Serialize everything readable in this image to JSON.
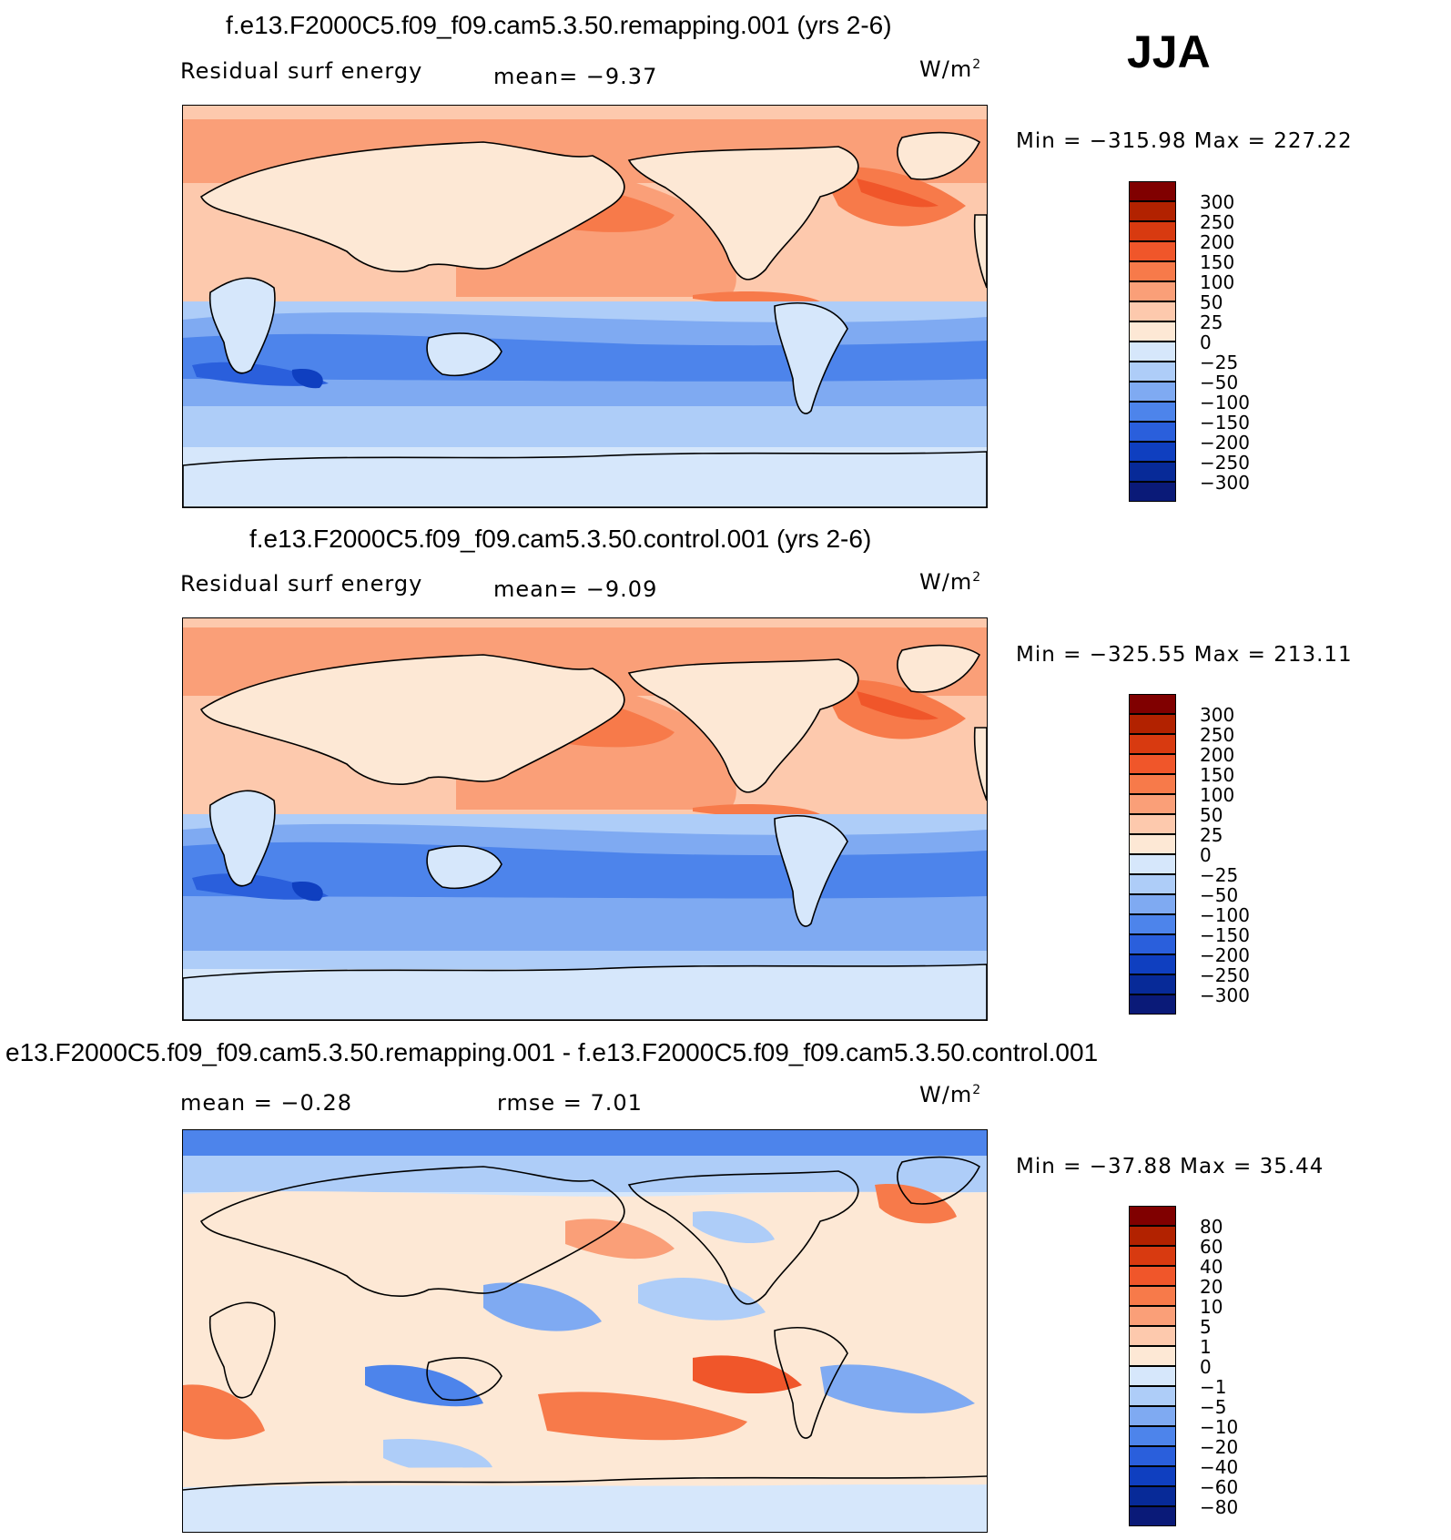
{
  "season": "JJA",
  "panels": [
    {
      "id": "remap",
      "title": "f.e13.F2000C5.f09_f09.cam5.3.50.remapping.001 (yrs 2-6)",
      "left_label": "Residual surf energy",
      "mid_label": "mean=   −9.37",
      "unit": "W/m",
      "unit_sup": "2",
      "minmax": "Min = −315.98 Max = 227.22",
      "colorbar": {
        "labels": [
          "300",
          "250",
          "200",
          "150",
          "100",
          "50",
          "25",
          "0",
          "−25",
          "−50",
          "−100",
          "−150",
          "−200",
          "−250",
          "−300"
        ],
        "colors": [
          "#800000",
          "#b22200",
          "#d83a10",
          "#f0562a",
          "#f77a4a",
          "#fa9f78",
          "#fdc9ad",
          "#fde8d5",
          "#d6e7fb",
          "#aecdf8",
          "#7faaf2",
          "#4d84eb",
          "#2a5fdc",
          "#0f3fc0",
          "#072a98",
          "#0a1a78"
        ]
      }
    },
    {
      "id": "control",
      "title": "f.e13.F2000C5.f09_f09.cam5.3.50.control.001 (yrs 2-6)",
      "left_label": "Residual surf energy",
      "mid_label": "mean=   −9.09",
      "unit": "W/m",
      "unit_sup": "2",
      "minmax": "Min = −325.55 Max = 213.11",
      "colorbar": {
        "labels": [
          "300",
          "250",
          "200",
          "150",
          "100",
          "50",
          "25",
          "0",
          "−25",
          "−50",
          "−100",
          "−150",
          "−200",
          "−250",
          "−300"
        ],
        "colors": [
          "#800000",
          "#b22200",
          "#d83a10",
          "#f0562a",
          "#f77a4a",
          "#fa9f78",
          "#fdc9ad",
          "#fde8d5",
          "#d6e7fb",
          "#aecdf8",
          "#7faaf2",
          "#4d84eb",
          "#2a5fdc",
          "#0f3fc0",
          "#072a98",
          "#0a1a78"
        ]
      }
    },
    {
      "id": "diff",
      "title": "e13.F2000C5.f09_f09.cam5.3.50.remapping.001 - f.e13.F2000C5.f09_f09.cam5.3.50.control.001",
      "left_label": "mean =   −0.28",
      "mid_label": "rmse =     7.01",
      "unit": "W/m",
      "unit_sup": "2",
      "minmax": "Min = −37.88 Max =   35.44",
      "colorbar": {
        "labels": [
          "80",
          "60",
          "40",
          "20",
          "10",
          "5",
          "1",
          "0",
          "−1",
          "−5",
          "−10",
          "−20",
          "−40",
          "−60",
          "−80"
        ],
        "colors": [
          "#800000",
          "#b22200",
          "#d83a10",
          "#f0562a",
          "#f77a4a",
          "#fa9f78",
          "#fdc9ad",
          "#fde8d5",
          "#d6e7fb",
          "#aecdf8",
          "#7faaf2",
          "#4d84eb",
          "#2a5fdc",
          "#0f3fc0",
          "#072a98",
          "#0a1a78"
        ]
      }
    }
  ]
}
